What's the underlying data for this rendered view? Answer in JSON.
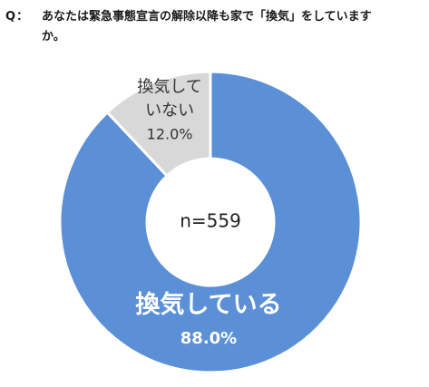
{
  "question": {
    "marker": "Q：",
    "text": "あなたは緊急事態宣言の解除以降も家で「換気」をしていますか。"
  },
  "chart_data": {
    "type": "pie",
    "subtype": "donut",
    "center_label": "n=559",
    "categories": [
      "換気している",
      "換気していない"
    ],
    "values": [
      88.0,
      12.0
    ],
    "value_labels": [
      "88.0%",
      "12.0%"
    ],
    "colors": [
      "#5b8fd6",
      "#d8d8d8"
    ],
    "label_lines": [
      [
        "換気している"
      ],
      [
        "換気して",
        "いない"
      ]
    ]
  }
}
